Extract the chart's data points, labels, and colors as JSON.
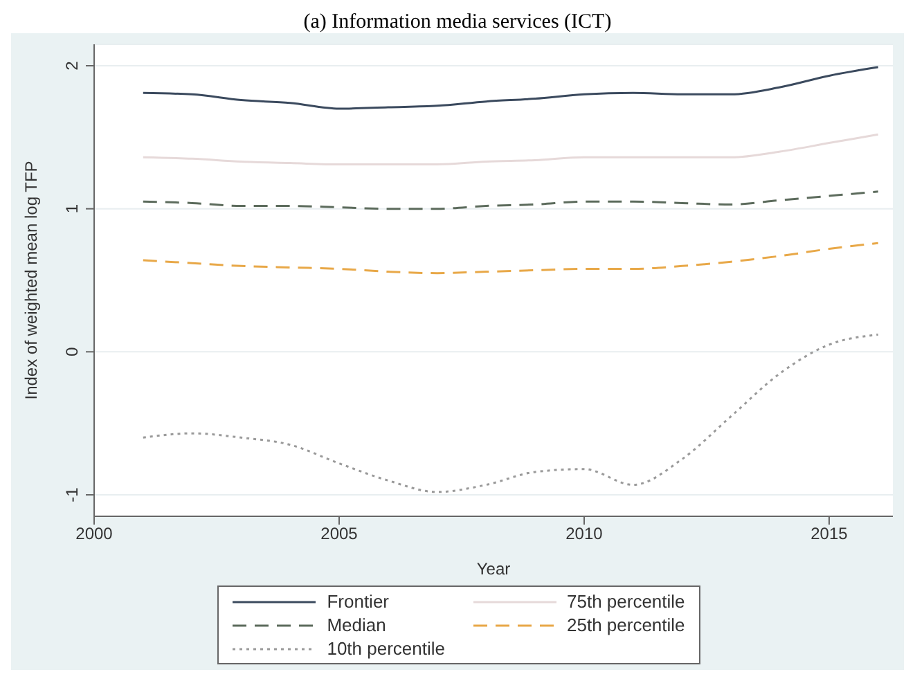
{
  "chart_data": {
    "type": "line",
    "title": "(a) Information media services (ICT)",
    "xlabel": "Year",
    "ylabel": "Index of weighted mean log TFP",
    "x": [
      2001,
      2002,
      2003,
      2004,
      2005,
      2006,
      2007,
      2008,
      2009,
      2010,
      2011,
      2012,
      2013,
      2014,
      2015,
      2016
    ],
    "series": [
      {
        "name": "Frontier",
        "color": "#3b4a5e",
        "line_style": "solid",
        "values": [
          1.81,
          1.8,
          1.76,
          1.74,
          1.7,
          1.71,
          1.72,
          1.75,
          1.77,
          1.8,
          1.81,
          1.8,
          1.8,
          1.85,
          1.93,
          1.99
        ]
      },
      {
        "name": "75th percentile",
        "color": "#e6d9d9",
        "line_style": "solid",
        "values": [
          1.36,
          1.35,
          1.33,
          1.32,
          1.31,
          1.31,
          1.31,
          1.33,
          1.34,
          1.36,
          1.36,
          1.36,
          1.36,
          1.4,
          1.46,
          1.52
        ]
      },
      {
        "name": "Median",
        "color": "#5c6b5c",
        "line_style": "dashed",
        "values": [
          1.05,
          1.04,
          1.02,
          1.02,
          1.01,
          1.0,
          1.0,
          1.02,
          1.03,
          1.05,
          1.05,
          1.04,
          1.03,
          1.06,
          1.09,
          1.12
        ]
      },
      {
        "name": "25th percentile",
        "color": "#e8a848",
        "line_style": "dashed",
        "values": [
          0.64,
          0.62,
          0.6,
          0.59,
          0.58,
          0.56,
          0.55,
          0.56,
          0.57,
          0.58,
          0.58,
          0.6,
          0.63,
          0.67,
          0.72,
          0.76
        ]
      },
      {
        "name": "10th percentile",
        "color": "#9a9a9a",
        "line_style": "dotted",
        "values": [
          -0.6,
          -0.57,
          -0.6,
          -0.65,
          -0.78,
          -0.9,
          -0.98,
          -0.93,
          -0.84,
          -0.82,
          -0.93,
          -0.75,
          -0.45,
          -0.15,
          0.05,
          0.12
        ]
      }
    ],
    "xlim": [
      2000,
      2016.3
    ],
    "xticks": [
      2000,
      2005,
      2010,
      2015
    ],
    "ylim": [
      -1.15,
      2.15
    ],
    "yticks": [
      -1,
      0,
      1,
      2
    ],
    "grid": "y",
    "legend": "bottom"
  }
}
